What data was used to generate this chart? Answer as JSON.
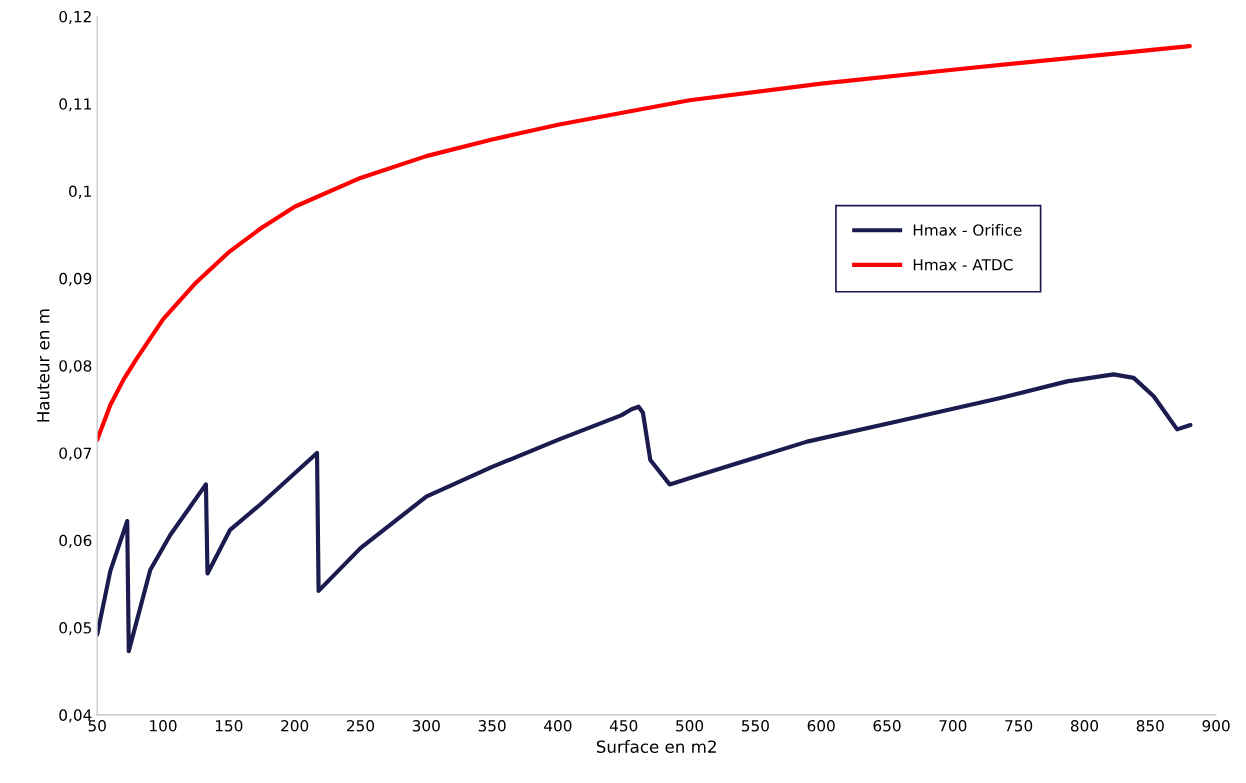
{
  "chart_data": {
    "type": "line",
    "xlabel": "Surface en m2",
    "ylabel": "Hauteur en m",
    "xlim": [
      50,
      900
    ],
    "xticks": [
      50,
      100,
      150,
      200,
      250,
      300,
      350,
      400,
      450,
      500,
      550,
      600,
      650,
      700,
      750,
      800,
      850,
      900
    ],
    "ylim": [
      0.04,
      0.12
    ],
    "yticks": [
      {
        "value": 0.04,
        "label": "0,04"
      },
      {
        "value": 0.05,
        "label": "0,05"
      },
      {
        "value": 0.06,
        "label": "0,06"
      },
      {
        "value": 0.07,
        "label": "0,07"
      },
      {
        "value": 0.08,
        "label": "0,08"
      },
      {
        "value": 0.09,
        "label": "0,09"
      },
      {
        "value": 0.1,
        "label": "0,1"
      },
      {
        "value": 0.11,
        "label": "0,11"
      },
      {
        "value": 0.12,
        "label": "0,12"
      }
    ],
    "legend": "right",
    "grid": false,
    "marker": "none",
    "line_style": "solid",
    "series": [
      {
        "name": "Hmax - Orifice",
        "color": "#1b1b4f",
        "x": [
          50,
          60,
          72.8,
          74,
          90.3,
          105.5,
          132.6,
          133.8,
          151,
          173.9,
          217,
          218.2,
          250,
          300,
          350,
          400,
          448,
          456,
          461.3,
          464.6,
          470.2,
          484.9,
          508.2,
          589.3,
          660,
          736.2,
          786.8,
          822.2,
          837.4,
          852.6,
          870.4,
          880.5
        ],
        "values": [
          0.0492,
          0.0565,
          0.0622,
          0.0473,
          0.0566,
          0.0606,
          0.0664,
          0.0562,
          0.0612,
          0.0641,
          0.07,
          0.0542,
          0.0591,
          0.065,
          0.0684,
          0.0715,
          0.0743,
          0.075,
          0.0753,
          0.0746,
          0.0692,
          0.0664,
          0.0675,
          0.0713,
          0.0737,
          0.0763,
          0.0782,
          0.079,
          0.0786,
          0.0765,
          0.0727,
          0.0732
        ]
      },
      {
        "name": "Hmax - ATDC",
        "color": "#ff0000",
        "x": [
          50,
          60,
          70,
          80,
          100,
          125,
          150,
          175,
          200,
          250,
          300,
          350,
          400,
          450,
          500,
          600,
          700,
          800,
          880
        ],
        "values": [
          0.0715,
          0.0755,
          0.0784,
          0.0808,
          0.0853,
          0.0895,
          0.093,
          0.0958,
          0.0982,
          0.1015,
          0.104,
          0.1059,
          0.1076,
          0.109,
          0.1104,
          0.1123,
          0.1139,
          0.1154,
          0.1166
        ]
      }
    ]
  }
}
